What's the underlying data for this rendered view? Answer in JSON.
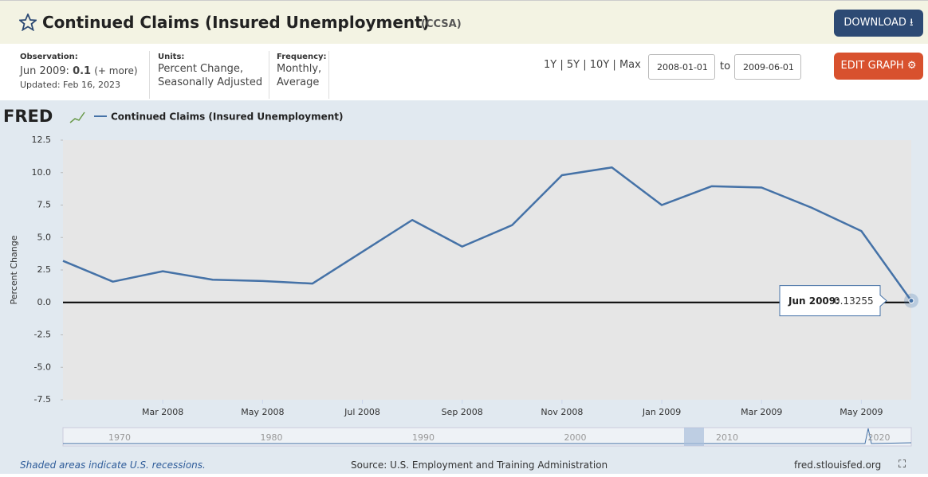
{
  "header": {
    "title": "Continued Claims (Insured Unemployment)",
    "code": "(CCSA)",
    "download": "DOWNLOAD",
    "edit_graph": "EDIT GRAPH"
  },
  "info": {
    "observation_label": "Observation:",
    "observation_date": "Jun 2009:",
    "observation_value": "0.1",
    "more": "(+ more)",
    "updated": "Updated: Feb 16, 2023",
    "units_label": "Units:",
    "units": [
      "Percent Change,",
      "Seasonally Adjusted"
    ],
    "frequency_label": "Frequency:",
    "frequency": [
      "Monthly,",
      "Average"
    ]
  },
  "range": {
    "options": [
      "1Y",
      "5Y",
      "10Y",
      "Max"
    ],
    "separator": "|",
    "start": "2008-01-01",
    "to": "to",
    "end": "2009-06-01"
  },
  "chart_data": {
    "type": "line",
    "logo": "FRED",
    "ylabel": "Percent Change",
    "categories": [
      null,
      null,
      "Mar 2008",
      null,
      "May 2008",
      null,
      "Jul 2008",
      null,
      "Sep 2008",
      null,
      "Nov 2008",
      null,
      "Jan 2009",
      null,
      "Mar 2009",
      null,
      "May 2009",
      null
    ],
    "series": [
      {
        "name": "Continued Claims (Insured Unemployment)",
        "color": "#4572a7",
        "values": [
          3.2,
          1.6,
          2.4,
          1.75,
          1.65,
          1.45,
          3.9,
          6.35,
          4.3,
          5.95,
          9.8,
          10.4,
          7.5,
          8.95,
          8.85,
          7.3,
          5.5,
          0.13255
        ]
      }
    ],
    "ylim": [
      -7.5,
      12.5
    ],
    "yticks": [
      12.5,
      {
        "value": 10,
        "label": "10.0"
      },
      7.5,
      {
        "value": 5,
        "label": "5.0"
      },
      2.5,
      {
        "value": 0,
        "label": "0.0"
      },
      -2.5,
      {
        "value": -5,
        "label": "-5.0"
      },
      -7.5
    ],
    "tooltip_label": "Jun 2009:",
    "navigator_years": [
      "1970",
      "1980",
      "1990",
      "2000",
      "2010",
      "2020"
    ]
  },
  "footer": {
    "recessions": "Shaded areas indicate U.S. recessions.",
    "source": "Source: U.S. Employment and Training Administration",
    "site": "fred.stlouisfed.org"
  }
}
